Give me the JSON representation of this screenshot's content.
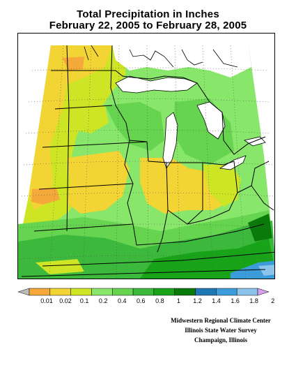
{
  "title": {
    "line1": "Total Precipitation in Inches",
    "line2": "February 22, 2005 to February 28, 2005"
  },
  "legend": {
    "labels": [
      "0.01",
      "0.02",
      "0.1",
      "0.2",
      "0.4",
      "0.6",
      "0.8",
      "1",
      "1.2",
      "1.4",
      "1.6",
      "1.8",
      "2"
    ],
    "colors": [
      "#bdbdbd",
      "#f5a93a",
      "#f3d435",
      "#cde524",
      "#88e66a",
      "#66d44f",
      "#3cb83c",
      "#19a319",
      "#0a7a0a",
      "#1f78b4",
      "#3c9cd9",
      "#8cc4ec",
      "#d7a1ef"
    ]
  },
  "map": {
    "region": "Midwest United States",
    "palette": {
      "lt_green": "#88e66a",
      "md_green": "#66d44f",
      "dk_green": "#3cb83c",
      "green4": "#19a319",
      "green5": "#0a7a0a",
      "yel_green": "#cde524",
      "yellow": "#f3d435",
      "orange": "#f5a93a",
      "blue": "#3c9cd9",
      "lt_blue": "#8cc4ec"
    }
  },
  "credits": {
    "line1": "Midwestern Regional Climate Center",
    "line2": "Illinois State Water Survey",
    "line3": "Champaign, Illinois"
  }
}
